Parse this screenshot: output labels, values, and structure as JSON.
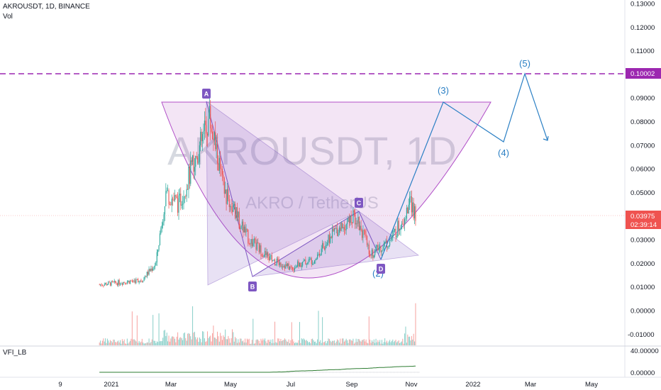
{
  "header": {
    "symbol_line": "AKROUSDT, 1D, BINANCE",
    "vol_label": "Vol"
  },
  "watermark": {
    "main": "AKROUSDT, 1D",
    "sub": "AKRO / TetherUS"
  },
  "indicator": {
    "label": "VFI_LB"
  },
  "price_axis": {
    "ticks": [
      "0.13000",
      "0.12000",
      "0.11000",
      "0.10000",
      "0.09000",
      "0.08000",
      "0.07000",
      "0.06000",
      "0.05000",
      "0.04000",
      "0.03000",
      "0.02000",
      "0.01000",
      "0.00000",
      "-0.01000"
    ],
    "target_badge": "0.10002",
    "current_badge": "0.03975",
    "countdown_badge": "02:39:14",
    "indicator_ticks": [
      "40.00000",
      "0.00000"
    ]
  },
  "time_axis": {
    "labels": [
      "9",
      "2021",
      "Mar",
      "May",
      "Jul",
      "Sep",
      "Nov",
      "2022",
      "Mar",
      "May"
    ]
  },
  "pattern_labels": {
    "A": "A",
    "B": "B",
    "C": "C",
    "D": "D"
  },
  "wave_labels": {
    "w2": "(2)",
    "w3": "(3)",
    "w4": "(4)",
    "w5": "(5)"
  },
  "colors": {
    "purple": "#7e57c2",
    "purple_fill": "#9c27b0",
    "target_line": "#9c27b0",
    "wave_line": "#2a7fc4",
    "up": "#26a69a",
    "down": "#ef5350",
    "vfi": "#2e7d32",
    "current_badge": "#ef5350"
  },
  "chart_data": {
    "type": "candlestick",
    "symbol": "AKROUSDT",
    "timeframe": "1D",
    "exchange": "BINANCE",
    "y_range": [
      -0.013,
      0.13
    ],
    "indicators": [
      "Vol",
      "VFI_LB"
    ],
    "approx_closes": [
      {
        "date": "2020-12-20",
        "close": 0.011
      },
      {
        "date": "2021-01-01",
        "close": 0.0115
      },
      {
        "date": "2021-02-01",
        "close": 0.013
      },
      {
        "date": "2021-02-15",
        "close": 0.02
      },
      {
        "date": "2021-02-25",
        "close": 0.05
      },
      {
        "date": "2021-03-10",
        "close": 0.045
      },
      {
        "date": "2021-04-01",
        "close": 0.07
      },
      {
        "date": "2021-04-10",
        "close": 0.082
      },
      {
        "date": "2021-04-25",
        "close": 0.05
      },
      {
        "date": "2021-05-20",
        "close": 0.03
      },
      {
        "date": "2021-06-10",
        "close": 0.022
      },
      {
        "date": "2021-07-01",
        "close": 0.018
      },
      {
        "date": "2021-07-25",
        "close": 0.022
      },
      {
        "date": "2021-08-15",
        "close": 0.034
      },
      {
        "date": "2021-09-05",
        "close": 0.04
      },
      {
        "date": "2021-09-20",
        "close": 0.024
      },
      {
        "date": "2021-10-10",
        "close": 0.03
      },
      {
        "date": "2021-10-30",
        "close": 0.045
      },
      {
        "date": "2021-11-05",
        "close": 0.03975
      }
    ],
    "pattern_points": [
      {
        "label": "A",
        "date": "2021-04-10",
        "price": 0.091
      },
      {
        "label": "B",
        "date": "2021-05-19",
        "price": 0.012
      },
      {
        "label": "C",
        "date": "2021-09-06",
        "price": 0.045
      },
      {
        "label": "D",
        "date": "2021-09-27",
        "price": 0.02
      }
    ],
    "wave_projection": [
      {
        "label": "(2)",
        "date": "2021-09-27",
        "price": 0.018
      },
      {
        "label": "(3)",
        "date": "2021-12-10",
        "price": 0.088
      },
      {
        "label": "(4)",
        "date": "2022-02-05",
        "price": 0.071
      },
      {
        "label": "(5)",
        "date": "2022-02-20",
        "price": 0.10002
      }
    ],
    "target_price": 0.10002,
    "current_price": 0.03975
  }
}
